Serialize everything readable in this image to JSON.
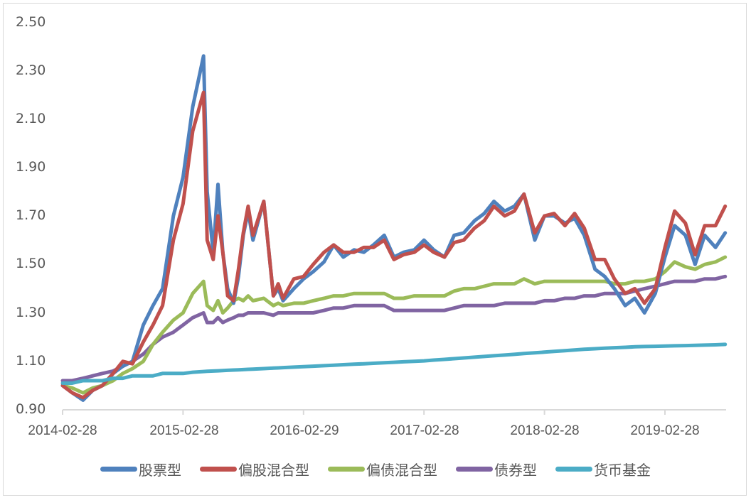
{
  "chart_data": {
    "type": "line",
    "title": "",
    "xlabel": "",
    "ylabel": "",
    "ylim": [
      0.9,
      2.5
    ],
    "y_ticks": [
      "2.50",
      "2.30",
      "2.10",
      "1.90",
      "1.70",
      "1.50",
      "1.30",
      "1.10",
      "0.90"
    ],
    "x_ticks": [
      "2014-02-28",
      "2015-02-28",
      "2016-02-29",
      "2017-02-28",
      "2018-02-28",
      "2019-02-28"
    ],
    "grid": false,
    "legend_position": "bottom",
    "x_unit": "years since 2014-02-28",
    "x": [
      0,
      0.08,
      0.17,
      0.25,
      0.33,
      0.42,
      0.5,
      0.58,
      0.67,
      0.75,
      0.83,
      0.92,
      1.0,
      1.08,
      1.17,
      1.2,
      1.25,
      1.29,
      1.33,
      1.37,
      1.42,
      1.46,
      1.5,
      1.54,
      1.58,
      1.67,
      1.75,
      1.79,
      1.83,
      1.92,
      2.0,
      2.08,
      2.17,
      2.25,
      2.33,
      2.42,
      2.5,
      2.58,
      2.67,
      2.75,
      2.83,
      2.92,
      3.0,
      3.08,
      3.17,
      3.25,
      3.33,
      3.42,
      3.5,
      3.58,
      3.67,
      3.75,
      3.83,
      3.92,
      4.0,
      4.08,
      4.17,
      4.25,
      4.33,
      4.42,
      4.5,
      4.58,
      4.67,
      4.75,
      4.83,
      4.92,
      5.0,
      5.08,
      5.17,
      5.25,
      5.33,
      5.42,
      5.5
    ],
    "series": [
      {
        "name": "股票型",
        "color": "#4f81bd",
        "values": [
          1.0,
          0.97,
          0.94,
          0.98,
          1.0,
          1.05,
          1.08,
          1.1,
          1.25,
          1.33,
          1.4,
          1.7,
          1.86,
          2.15,
          2.36,
          1.8,
          1.55,
          1.83,
          1.55,
          1.4,
          1.34,
          1.45,
          1.62,
          1.72,
          1.6,
          1.76,
          1.37,
          1.4,
          1.35,
          1.4,
          1.44,
          1.47,
          1.51,
          1.58,
          1.53,
          1.56,
          1.55,
          1.58,
          1.62,
          1.53,
          1.55,
          1.56,
          1.6,
          1.56,
          1.53,
          1.62,
          1.63,
          1.68,
          1.71,
          1.76,
          1.72,
          1.74,
          1.79,
          1.6,
          1.7,
          1.7,
          1.67,
          1.69,
          1.62,
          1.48,
          1.45,
          1.4,
          1.33,
          1.36,
          1.3,
          1.38,
          1.53,
          1.66,
          1.62,
          1.5,
          1.62,
          1.57,
          1.63
        ]
      },
      {
        "name": "偏股混合型",
        "color": "#c0504d",
        "values": [
          1.0,
          0.97,
          0.95,
          0.98,
          1.0,
          1.05,
          1.1,
          1.09,
          1.18,
          1.25,
          1.33,
          1.6,
          1.75,
          2.05,
          2.21,
          1.6,
          1.52,
          1.7,
          1.55,
          1.37,
          1.35,
          1.48,
          1.63,
          1.74,
          1.62,
          1.76,
          1.37,
          1.42,
          1.36,
          1.44,
          1.45,
          1.5,
          1.55,
          1.58,
          1.55,
          1.55,
          1.57,
          1.57,
          1.6,
          1.52,
          1.54,
          1.55,
          1.58,
          1.55,
          1.53,
          1.59,
          1.6,
          1.65,
          1.68,
          1.74,
          1.7,
          1.72,
          1.79,
          1.63,
          1.7,
          1.71,
          1.66,
          1.71,
          1.65,
          1.52,
          1.52,
          1.44,
          1.38,
          1.4,
          1.34,
          1.4,
          1.57,
          1.72,
          1.67,
          1.54,
          1.66,
          1.66,
          1.74
        ]
      },
      {
        "name": "偏债混合型",
        "color": "#9bbb59",
        "values": [
          1.0,
          0.99,
          0.97,
          0.99,
          1.0,
          1.02,
          1.05,
          1.07,
          1.1,
          1.17,
          1.22,
          1.27,
          1.3,
          1.38,
          1.43,
          1.33,
          1.31,
          1.35,
          1.3,
          1.32,
          1.35,
          1.36,
          1.35,
          1.37,
          1.35,
          1.36,
          1.33,
          1.34,
          1.33,
          1.34,
          1.34,
          1.35,
          1.36,
          1.37,
          1.37,
          1.38,
          1.38,
          1.38,
          1.38,
          1.36,
          1.36,
          1.37,
          1.37,
          1.37,
          1.37,
          1.39,
          1.4,
          1.4,
          1.41,
          1.42,
          1.42,
          1.42,
          1.44,
          1.42,
          1.43,
          1.43,
          1.43,
          1.43,
          1.43,
          1.43,
          1.43,
          1.42,
          1.42,
          1.43,
          1.43,
          1.44,
          1.47,
          1.51,
          1.49,
          1.48,
          1.5,
          1.51,
          1.53
        ]
      },
      {
        "name": "债券型",
        "color": "#8064a2",
        "values": [
          1.02,
          1.02,
          1.03,
          1.04,
          1.05,
          1.06,
          1.08,
          1.1,
          1.13,
          1.17,
          1.2,
          1.22,
          1.25,
          1.28,
          1.3,
          1.26,
          1.26,
          1.28,
          1.26,
          1.27,
          1.28,
          1.29,
          1.29,
          1.3,
          1.3,
          1.3,
          1.29,
          1.3,
          1.3,
          1.3,
          1.3,
          1.3,
          1.31,
          1.32,
          1.32,
          1.33,
          1.33,
          1.33,
          1.33,
          1.31,
          1.31,
          1.31,
          1.31,
          1.31,
          1.31,
          1.32,
          1.33,
          1.33,
          1.33,
          1.33,
          1.34,
          1.34,
          1.34,
          1.34,
          1.35,
          1.35,
          1.36,
          1.36,
          1.37,
          1.37,
          1.38,
          1.38,
          1.38,
          1.39,
          1.4,
          1.41,
          1.42,
          1.43,
          1.43,
          1.43,
          1.44,
          1.44,
          1.45
        ]
      },
      {
        "name": "货币基金",
        "color": "#4bacc6",
        "values": [
          1.01,
          1.01,
          1.02,
          1.02,
          1.02,
          1.03,
          1.03,
          1.04,
          1.04,
          1.04,
          1.05,
          1.05,
          1.05,
          1.055,
          1.058,
          1.059,
          1.06,
          1.061,
          1.062,
          1.063,
          1.064,
          1.065,
          1.066,
          1.067,
          1.068,
          1.07,
          1.072,
          1.073,
          1.074,
          1.076,
          1.078,
          1.08,
          1.082,
          1.084,
          1.086,
          1.088,
          1.09,
          1.092,
          1.094,
          1.096,
          1.098,
          1.1,
          1.102,
          1.105,
          1.108,
          1.111,
          1.114,
          1.117,
          1.12,
          1.123,
          1.126,
          1.129,
          1.132,
          1.135,
          1.138,
          1.141,
          1.144,
          1.147,
          1.15,
          1.152,
          1.154,
          1.156,
          1.158,
          1.16,
          1.161,
          1.162,
          1.163,
          1.164,
          1.165,
          1.166,
          1.167,
          1.168,
          1.17
        ]
      }
    ]
  },
  "axis": {
    "y": [
      "2.50",
      "2.30",
      "2.10",
      "1.90",
      "1.70",
      "1.50",
      "1.30",
      "1.10",
      "0.90"
    ],
    "x": [
      "2014-02-28",
      "2015-02-28",
      "2016-02-29",
      "2017-02-28",
      "2018-02-28",
      "2019-02-28"
    ]
  },
  "legend": [
    {
      "label": "股票型",
      "color": "#4f81bd"
    },
    {
      "label": "偏股混合型",
      "color": "#c0504d"
    },
    {
      "label": "偏债混合型",
      "color": "#9bbb59"
    },
    {
      "label": "债券型",
      "color": "#8064a2"
    },
    {
      "label": "货币基金",
      "color": "#4bacc6"
    }
  ]
}
